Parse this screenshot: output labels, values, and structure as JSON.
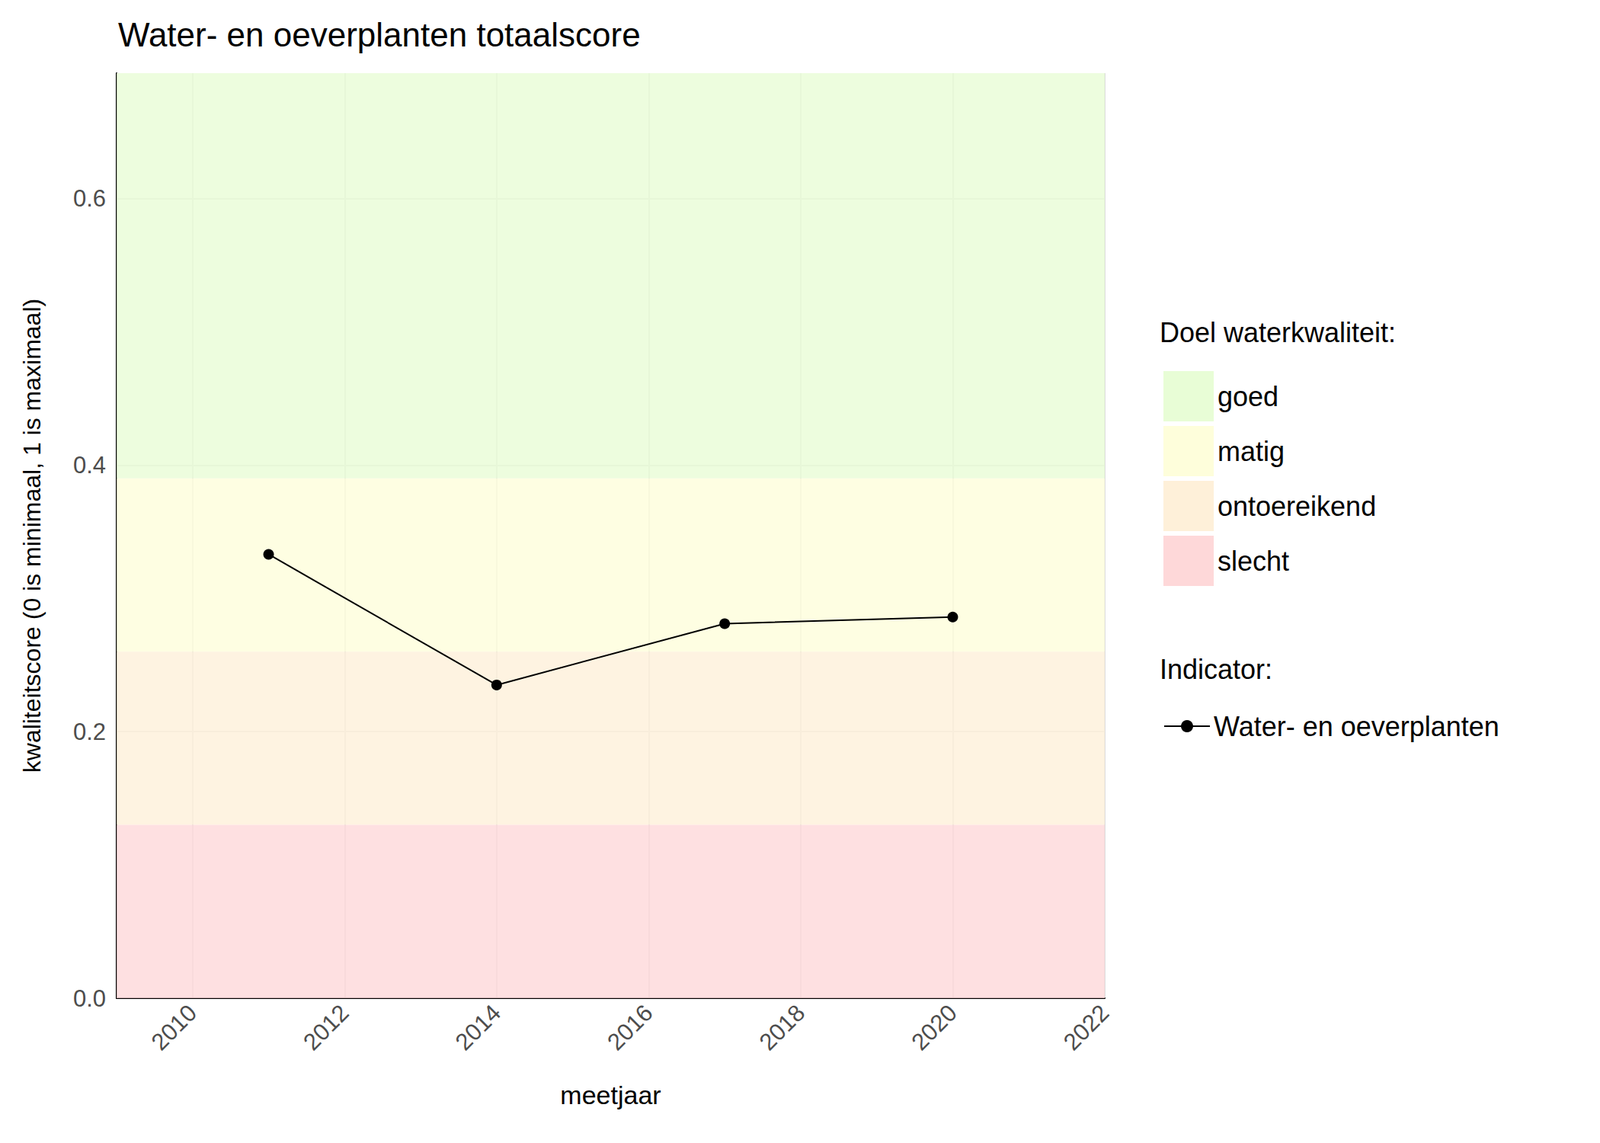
{
  "chart_data": {
    "type": "line",
    "title": "Water- en oeverplanten totaalscore",
    "x_label": "meetjaar",
    "y_label": "kwaliteitscore (0 is minimaal, 1 is maximaal)",
    "x": [
      2011,
      2014,
      2017,
      2020
    ],
    "series": [
      {
        "name": "Water- en oeverplanten",
        "color": "#000000",
        "marker": "circle",
        "line_style": "solid",
        "values": [
          0.333,
          0.235,
          0.281,
          0.286
        ]
      }
    ],
    "bands_title": "Doel waterkwaliteit:",
    "series_legend_title": "Indicator:",
    "bands": [
      {
        "name": "goed",
        "color": "#e8fdd6",
        "from": 0.39,
        "to": 0.694
      },
      {
        "name": "matig",
        "color": "#fefedb",
        "from": 0.26,
        "to": 0.39
      },
      {
        "name": "ontoereikend",
        "color": "#fef0d9",
        "from": 0.13,
        "to": 0.26
      },
      {
        "name": "slecht",
        "color": "#fed8d9",
        "from": 0,
        "to": 0.13
      }
    ],
    "xlim": [
      2009,
      2022
    ],
    "xticks": [
      2010,
      2012,
      2014,
      2016,
      2018,
      2020,
      2022
    ],
    "ylim": [
      0,
      0.694
    ],
    "yticks": [
      {
        "value": 0,
        "label": "0.0"
      },
      0.2,
      0.4,
      0.6
    ],
    "grid": true
  }
}
